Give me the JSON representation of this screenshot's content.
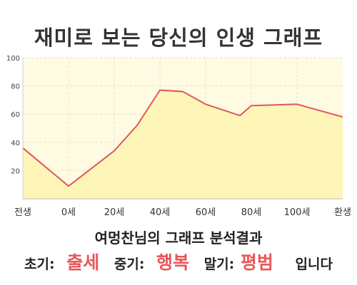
{
  "page": {
    "title": "재미로 보는 당신의 인생 그래프"
  },
  "result": {
    "heading": "여멍찬님의 그래프 분석결과",
    "early_label": "초기:",
    "early_value": "출세",
    "middle_label": "중기:",
    "middle_value": "행복",
    "late_label": "말기:",
    "late_value": "평범",
    "ending": "입니다"
  },
  "colors": {
    "plot_background": "#fffbe3",
    "area_fill": "#fdf6b8",
    "line": "#e2555c",
    "grid": "#e6e0c0",
    "highlight": "#e8575a"
  },
  "chart_data": {
    "type": "area",
    "title": "재미로 보는 당신의 인생 그래프",
    "xlabel": "",
    "ylabel": "",
    "x_ticks": [
      "전생",
      "0세",
      "20세",
      "40세",
      "60세",
      "80세",
      "100세",
      "환생"
    ],
    "ylim": [
      0,
      100
    ],
    "y_ticks": [
      20,
      40,
      60,
      80,
      100
    ],
    "grid": true,
    "series": [
      {
        "points": [
          {
            "x": "전생",
            "y": 36
          },
          {
            "x": "0세",
            "y": 9
          },
          {
            "x": "20세",
            "y": 34
          },
          {
            "x": "30세",
            "y": 52
          },
          {
            "x": "40세",
            "y": 77
          },
          {
            "x": "50세",
            "y": 76
          },
          {
            "x": "60세",
            "y": 67
          },
          {
            "x": "75세",
            "y": 59
          },
          {
            "x": "80세",
            "y": 66
          },
          {
            "x": "100세",
            "y": 67
          },
          {
            "x": "환생",
            "y": 58
          }
        ]
      }
    ]
  }
}
